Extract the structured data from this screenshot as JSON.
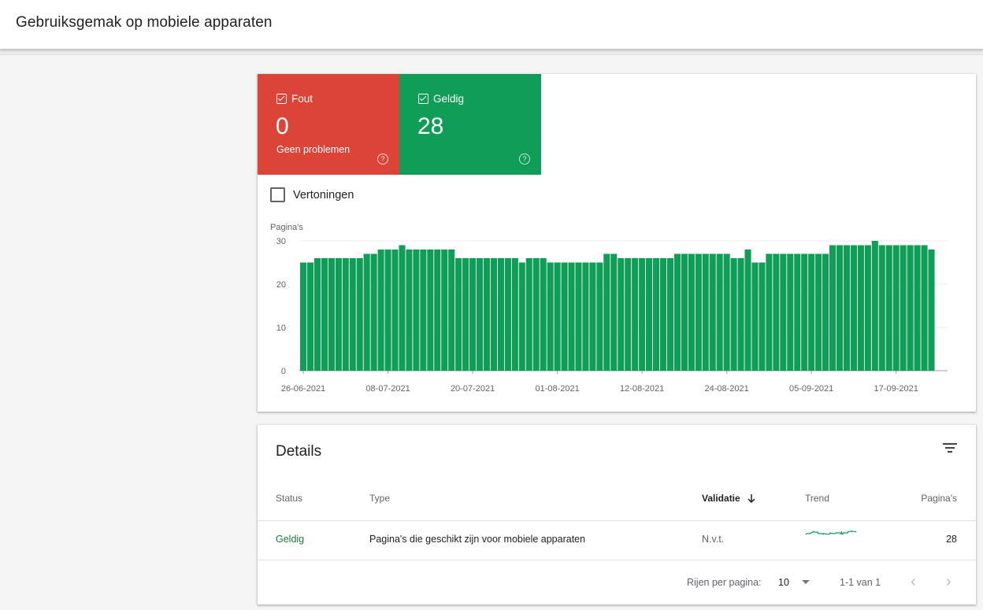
{
  "header": {
    "title": "Gebruiksgemak op mobiele apparaten"
  },
  "tiles": {
    "error": {
      "label": "Fout",
      "count": "0",
      "subtitle": "Geen problemen",
      "help": "?",
      "color": "#db4437"
    },
    "valid": {
      "label": "Geldig",
      "count": "28",
      "help": "?",
      "color": "#0f9d58"
    }
  },
  "impressions": {
    "label": "Vertoningen",
    "checked": false
  },
  "chart_data": {
    "type": "bar",
    "ylabel": "Pagina's",
    "ylim": [
      0,
      30
    ],
    "yticks": [
      "0",
      "10",
      "20",
      "30"
    ],
    "xtick_labels": [
      "26-06-2021",
      "08-07-2021",
      "20-07-2021",
      "01-08-2021",
      "12-08-2021",
      "24-08-2021",
      "05-09-2021",
      "17-09-2021"
    ],
    "color": "#0f9d58",
    "values": [
      25,
      25,
      26,
      26,
      26,
      26,
      26,
      26,
      26,
      27,
      27,
      28,
      28,
      28,
      29,
      28,
      28,
      28,
      28,
      28,
      28,
      28,
      26,
      26,
      26,
      26,
      26,
      26,
      26,
      26,
      26,
      25,
      26,
      26,
      26,
      25,
      25,
      25,
      25,
      25,
      25,
      25,
      25,
      27,
      27,
      26,
      26,
      26,
      26,
      26,
      26,
      26,
      26,
      27,
      27,
      27,
      27,
      27,
      27,
      27,
      27,
      26,
      26,
      28,
      25,
      25,
      27,
      27,
      27,
      27,
      27,
      27,
      27,
      27,
      27,
      29,
      29,
      29,
      29,
      29,
      29,
      30,
      29,
      29,
      29,
      29,
      29,
      29,
      29,
      28
    ]
  },
  "details": {
    "title": "Details",
    "columns": {
      "status": "Status",
      "type": "Type",
      "validation": "Validatie",
      "trend": "Trend",
      "pages": "Pagina's"
    },
    "rows": [
      {
        "status": "Geldig",
        "type": "Pagina's die geschikt zijn voor mobiele apparaten",
        "validation": "N.v.t.",
        "pages": "28"
      }
    ],
    "footer": {
      "rows_per_page_label": "Rijen per pagina:",
      "rows_per_page": "10",
      "range": "1-1 van 1"
    },
    "status_color": "#188038"
  }
}
